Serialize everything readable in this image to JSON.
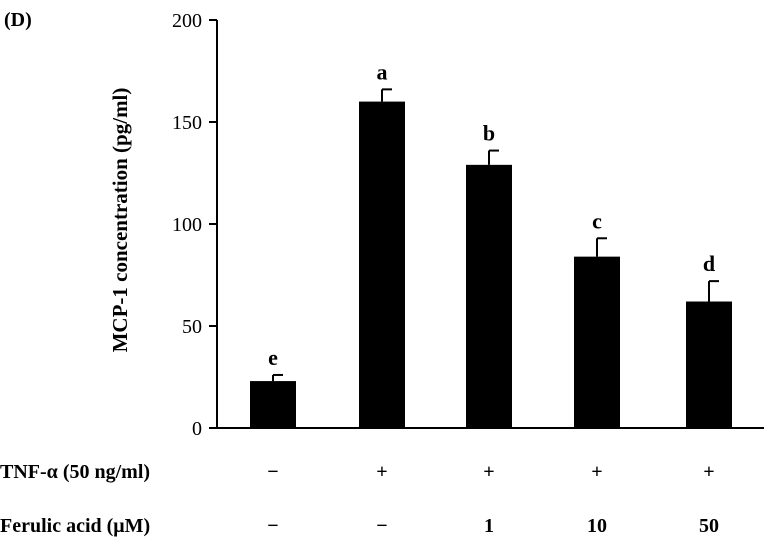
{
  "chart_data": {
    "type": "bar",
    "panel_label": "(D)",
    "ylabel": "MCP-1 concentration (pg/ml)",
    "ylim": [
      0,
      200
    ],
    "yticks": [
      "0",
      "50",
      "100",
      "150",
      "200"
    ],
    "grid": false,
    "bar_color": "#000000",
    "values": [
      23,
      160,
      129,
      84,
      62
    ],
    "errors": [
      3,
      6,
      7,
      9,
      10
    ],
    "significance_labels": [
      "e",
      "a",
      "b",
      "c",
      "d"
    ],
    "condition_rows": [
      {
        "label": "TNF-α (50 ng/ml)",
        "values": [
          "−",
          "+",
          "+",
          "+",
          "+"
        ]
      },
      {
        "label": "Ferulic acid (μM)",
        "values": [
          "−",
          "−",
          "1",
          "10",
          "50"
        ]
      }
    ]
  }
}
